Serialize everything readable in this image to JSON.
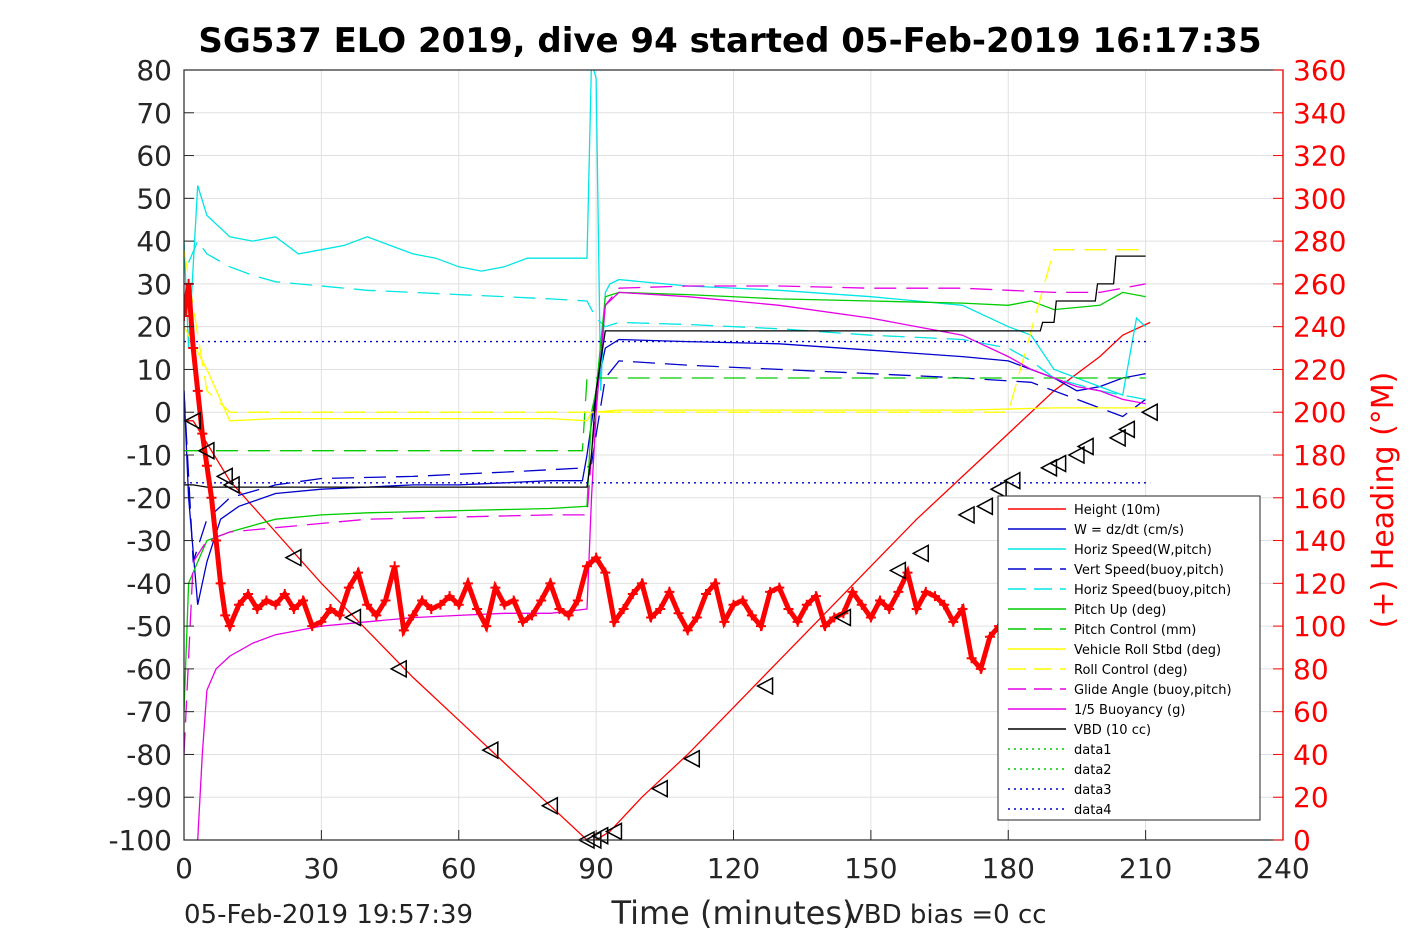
{
  "chart_data": {
    "type": "line",
    "title": "SG537 ELO 2019, dive 94 started 05-Feb-2019 16:17:35",
    "xlabel": "Time (minutes)",
    "ylabel_right": "(+) Heading (°M)",
    "xlim": [
      0,
      240
    ],
    "ylim": [
      -100,
      80
    ],
    "ylim_right": [
      0,
      360
    ],
    "x_ticks": [
      "0",
      "30",
      "60",
      "90",
      "120",
      "150",
      "180",
      "210",
      "240"
    ],
    "y_ticks": [
      "80",
      "70",
      "60",
      "50",
      "40",
      "30",
      "20",
      "10",
      "0",
      "-10",
      "-20",
      "-30",
      "-40",
      "-50",
      "-60",
      "-70",
      "-80",
      "-90",
      "-100"
    ],
    "y_ticks_right": [
      "360",
      "340",
      "320",
      "300",
      "280",
      "260",
      "240",
      "220",
      "200",
      "180",
      "160",
      "140",
      "120",
      "100",
      "80",
      "60",
      "40",
      "20",
      "0"
    ],
    "grid": true,
    "legend_position": "lower-right",
    "footer_left": "05-Feb-2019 19:57:39",
    "footer_right": "VBD bias =0 cc",
    "colors": {
      "red": "#ff0000",
      "blue": "#0000cd",
      "cyan": "#00e5e5",
      "green": "#00cc00",
      "yellow": "#ffff00",
      "magenta": "#e600e6",
      "black": "#000000",
      "right_axis": "#ff0000"
    },
    "series": [
      {
        "name": "Height (10m)",
        "color": "#ff0000",
        "style": "solid",
        "x": [
          0,
          2,
          10,
          20,
          30,
          40,
          50,
          60,
          70,
          80,
          88,
          90,
          93,
          100,
          110,
          120,
          130,
          140,
          150,
          160,
          170,
          180,
          190,
          200,
          205,
          211
        ],
        "y": [
          -2,
          -2,
          -16,
          -28,
          -40,
          -51,
          -62,
          -72,
          -82,
          -92,
          -100,
          -100,
          -98,
          -90,
          -80,
          -69,
          -58,
          -47,
          -36,
          -25,
          -15,
          -5,
          5,
          13,
          18,
          21
        ]
      },
      {
        "name": "W = dz/dt (cm/s)",
        "color": "#0000cd",
        "style": "solid",
        "x": [
          0,
          1,
          3,
          5,
          8,
          12,
          20,
          30,
          40,
          50,
          60,
          70,
          80,
          87,
          88,
          90,
          92,
          95,
          110,
          130,
          150,
          170,
          180,
          190,
          195,
          200,
          205,
          210
        ],
        "y": [
          5,
          -20,
          -45,
          -35,
          -25,
          -22,
          -19,
          -18,
          -17.5,
          -17,
          -17,
          -16.5,
          -16,
          -16,
          -10,
          5,
          15,
          17,
          16.5,
          16,
          14.5,
          13,
          12,
          8,
          5,
          6,
          8,
          9
        ]
      },
      {
        "name": "Horiz Speed(W,pitch)",
        "color": "#00e5e5",
        "style": "solid",
        "x": [
          0,
          1,
          3,
          5,
          10,
          15,
          20,
          25,
          30,
          35,
          40,
          45,
          50,
          55,
          60,
          65,
          70,
          75,
          80,
          85,
          88,
          89,
          90,
          91,
          92,
          93,
          95,
          110,
          130,
          150,
          170,
          180,
          185,
          190,
          195,
          200,
          205,
          208,
          210
        ],
        "y": [
          40,
          15,
          53,
          46,
          41,
          40,
          41,
          37,
          38,
          39,
          41,
          39,
          37,
          36,
          34,
          33,
          34,
          36,
          36,
          36,
          36,
          82,
          78,
          5,
          28,
          30,
          31,
          29.5,
          28.5,
          27,
          25,
          20,
          18,
          10,
          8,
          6,
          4,
          22,
          20
        ]
      },
      {
        "name": "Vert Speed(buoy,pitch)",
        "color": "#0000cd",
        "style": "dashed",
        "x": [
          0,
          2,
          5,
          10,
          20,
          30,
          50,
          70,
          88,
          89,
          92,
          95,
          110,
          130,
          150,
          170,
          185,
          190,
          200,
          205,
          210
        ],
        "y": [
          5,
          -35,
          -25,
          -20,
          -17,
          -15.5,
          -15,
          -14,
          -13,
          -12,
          8,
          12,
          11,
          10,
          9,
          8,
          7,
          5,
          1,
          -1,
          3
        ]
      },
      {
        "name": "Horiz Speed(buoy,pitch)",
        "color": "#00e5e5",
        "style": "dashed",
        "x": [
          1,
          3,
          5,
          10,
          15,
          20,
          30,
          40,
          50,
          60,
          70,
          80,
          88,
          90,
          92,
          95,
          110,
          130,
          150,
          170,
          180,
          185,
          190,
          200,
          205,
          210
        ],
        "y": [
          35,
          40,
          37,
          34,
          32,
          30.5,
          29.5,
          28.5,
          28,
          27.5,
          27,
          26.5,
          26,
          22,
          20,
          21,
          20.5,
          19.5,
          18,
          17,
          15,
          12,
          8,
          5,
          4,
          3
        ]
      },
      {
        "name": "Pitch Up (deg)",
        "color": "#00cc00",
        "style": "solid",
        "x": [
          0,
          1,
          3,
          5,
          10,
          20,
          30,
          40,
          60,
          80,
          88,
          89,
          90,
          92,
          95,
          110,
          130,
          150,
          170,
          180,
          185,
          190,
          200,
          205,
          210
        ],
        "y": [
          -70,
          -40,
          -35,
          -30,
          -28,
          -25,
          -24,
          -23.5,
          -23,
          -22.5,
          -22,
          0,
          5,
          27,
          28,
          27.5,
          26.5,
          26,
          25.5,
          25,
          26,
          24,
          25,
          28,
          27
        ]
      },
      {
        "name": "Pitch Control (mm)",
        "color": "#00cc00",
        "style": "dashed",
        "x": [
          0,
          10,
          20,
          40,
          60,
          80,
          87,
          88,
          95,
          110,
          130,
          150,
          170,
          185,
          190,
          205,
          210
        ],
        "y": [
          -9,
          -9,
          -9,
          -9,
          -9,
          -9,
          -9,
          8,
          8,
          8,
          8,
          8,
          8,
          8,
          8,
          8,
          8
        ]
      },
      {
        "name": "Vehicle Roll Stbd (deg)",
        "color": "#ffff00",
        "style": "solid",
        "x": [
          0,
          5,
          10,
          20,
          40,
          60,
          80,
          88,
          89,
          95,
          110,
          130,
          150,
          170,
          190,
          200,
          210
        ],
        "y": [
          20,
          10,
          -2,
          -1.5,
          -1.5,
          -1.5,
          -1.5,
          -2,
          0,
          0.5,
          0.5,
          0.5,
          0.5,
          0.5,
          1,
          1,
          1
        ]
      },
      {
        "name": "Roll Control (deg)",
        "color": "#ffff00",
        "style": "dashed",
        "x": [
          0,
          5,
          10,
          40,
          88,
          90,
          150,
          180,
          190,
          200,
          210
        ],
        "y": [
          38,
          5,
          0,
          0,
          0,
          0,
          0,
          0,
          38,
          38,
          38
        ]
      },
      {
        "name": "Glide Angle (buoy,pitch)",
        "color": "#e600e6",
        "style": "dashed",
        "x": [
          0,
          2,
          5,
          10,
          20,
          40,
          60,
          80,
          88,
          89,
          92,
          95,
          110,
          130,
          150,
          170,
          180,
          190,
          200,
          205,
          210
        ],
        "y": [
          -80,
          -35,
          -30,
          -28,
          -27,
          -25,
          -24.5,
          -24,
          -24,
          -10,
          25,
          29,
          29.5,
          29.5,
          29,
          29,
          28.5,
          28,
          28,
          29,
          30
        ]
      },
      {
        "name": "1/5 Buoyancy (g)",
        "color": "#e600e6",
        "style": "solid",
        "x": [
          3,
          4,
          5,
          7,
          10,
          15,
          20,
          30,
          40,
          50,
          60,
          70,
          80,
          88,
          89,
          90,
          92,
          95,
          110,
          130,
          150,
          170,
          180,
          185,
          190,
          195,
          200,
          205,
          210
        ],
        "y": [
          -100,
          -80,
          -65,
          -60,
          -57,
          -54,
          -52,
          -50,
          -49,
          -48,
          -47.5,
          -47,
          -47,
          -46,
          -20,
          0,
          25,
          28,
          27,
          25,
          22,
          18,
          13,
          10,
          8,
          6,
          5,
          3,
          2
        ]
      },
      {
        "name": "VBD (10 cc)",
        "color": "#000000",
        "style": "solid",
        "x": [
          0,
          2,
          5,
          10,
          20,
          40,
          60,
          80,
          88,
          89,
          90,
          92,
          95,
          110,
          130,
          150,
          170,
          187,
          187.5,
          190,
          190.5,
          199,
          199.5,
          203,
          203.5,
          210
        ],
        "y": [
          -17,
          -17,
          -17.5,
          -17.5,
          -17.5,
          -17.5,
          -17.5,
          -17.5,
          -17.5,
          -10,
          5,
          19,
          19,
          19,
          19,
          19,
          19,
          19,
          21,
          21,
          26,
          26,
          30,
          30,
          36.5,
          36.5
        ]
      },
      {
        "name": "data1",
        "color": "#00cc00",
        "style": "dotted",
        "x": [],
        "y": []
      },
      {
        "name": "data2",
        "color": "#00cc00",
        "style": "dotted",
        "x": [],
        "y": []
      },
      {
        "name": "data3",
        "color": "#0000cd",
        "style": "dotted",
        "x": [
          0,
          211
        ],
        "y": [
          16.5,
          16.5
        ]
      },
      {
        "name": "data4",
        "color": "#0000cd",
        "style": "dotted",
        "x": [
          0,
          211
        ],
        "y": [
          -16.5,
          -16.5
        ]
      }
    ],
    "heading": {
      "axis": "right",
      "color": "#ff0000",
      "marker": "+",
      "x": [
        0,
        1,
        2,
        3,
        4,
        5,
        6,
        7,
        8,
        9,
        10,
        12,
        14,
        16,
        18,
        20,
        22,
        24,
        26,
        28,
        30,
        32,
        34,
        36,
        38,
        40,
        42,
        44,
        46,
        48,
        50,
        52,
        54,
        56,
        58,
        60,
        62,
        64,
        66,
        68,
        70,
        72,
        74,
        76,
        78,
        80,
        82,
        84,
        86,
        88,
        90,
        92,
        94,
        96,
        98,
        100,
        102,
        104,
        106,
        108,
        110,
        112,
        114,
        116,
        118,
        120,
        122,
        124,
        126,
        128,
        130,
        132,
        134,
        136,
        138,
        140,
        142,
        144,
        146,
        148,
        150,
        152,
        154,
        156,
        158,
        160,
        162,
        164,
        166,
        168,
        170,
        172,
        174,
        176,
        178,
        180,
        182,
        184
      ],
      "y": [
        245,
        260,
        230,
        210,
        190,
        175,
        160,
        140,
        120,
        105,
        100,
        110,
        115,
        108,
        112,
        110,
        115,
        108,
        112,
        100,
        102,
        108,
        105,
        118,
        125,
        110,
        105,
        112,
        128,
        98,
        105,
        112,
        108,
        110,
        114,
        110,
        120,
        108,
        100,
        118,
        110,
        112,
        102,
        105,
        112,
        120,
        108,
        105,
        112,
        128,
        132,
        125,
        102,
        108,
        115,
        120,
        104,
        108,
        116,
        106,
        98,
        104,
        115,
        120,
        102,
        110,
        112,
        105,
        100,
        116,
        118,
        108,
        102,
        110,
        114,
        100,
        104,
        106,
        116,
        110,
        104,
        112,
        108,
        116,
        125,
        108,
        116,
        114,
        110,
        102,
        108,
        85,
        80,
        95,
        100,
        112,
        118,
        108
      ]
    },
    "dive_markers": {
      "x": [
        2,
        5,
        9,
        10.5,
        24,
        37,
        47,
        67,
        80,
        88,
        89.5,
        91,
        94,
        104,
        111,
        127,
        144,
        156,
        161,
        171,
        175,
        178,
        181,
        189,
        191,
        195,
        197,
        204,
        206,
        211
      ],
      "y": [
        -2,
        -9,
        -15,
        -17,
        -34,
        -48,
        -60,
        -79,
        -92,
        -100,
        -100,
        -99,
        -98,
        -88,
        -81,
        -64,
        -48,
        -37,
        -33,
        -24,
        -22,
        -18,
        -16,
        -13,
        -12,
        -10,
        -8,
        -6,
        -4,
        0
      ]
    }
  }
}
